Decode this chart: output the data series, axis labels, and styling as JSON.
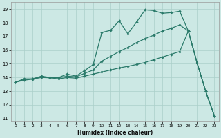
{
  "xlabel": "Humidex (Indice chaleur)",
  "bg_color": "#cce8e4",
  "grid_color": "#aacfc9",
  "line_color": "#2a7a6a",
  "xlim": [
    -0.5,
    23.5
  ],
  "ylim": [
    10.8,
    19.5
  ],
  "xticks": [
    0,
    1,
    2,
    3,
    4,
    5,
    6,
    7,
    8,
    9,
    10,
    11,
    12,
    13,
    14,
    15,
    16,
    17,
    18,
    19,
    20,
    21,
    22,
    23
  ],
  "yticks": [
    11,
    12,
    13,
    14,
    15,
    16,
    17,
    18,
    19
  ],
  "series1_y": [
    13.65,
    13.9,
    13.9,
    14.1,
    14.0,
    14.0,
    14.25,
    14.1,
    14.5,
    14.95,
    17.3,
    17.45,
    18.15,
    17.2,
    18.05,
    18.95,
    18.9,
    18.7,
    18.75,
    18.85,
    17.4,
    15.1,
    13.0,
    11.2
  ],
  "series2_y": [
    13.65,
    13.85,
    13.9,
    14.05,
    14.0,
    13.98,
    14.1,
    14.05,
    14.3,
    14.55,
    15.2,
    15.55,
    15.9,
    16.2,
    16.55,
    16.85,
    17.1,
    17.4,
    17.6,
    17.85,
    17.4,
    15.1,
    13.0,
    11.2
  ],
  "series3_y": [
    13.65,
    13.8,
    13.88,
    14.0,
    13.98,
    13.9,
    14.0,
    13.95,
    14.1,
    14.25,
    14.4,
    14.55,
    14.7,
    14.82,
    14.95,
    15.1,
    15.3,
    15.5,
    15.7,
    15.9,
    17.4,
    15.1,
    13.0,
    11.2
  ]
}
